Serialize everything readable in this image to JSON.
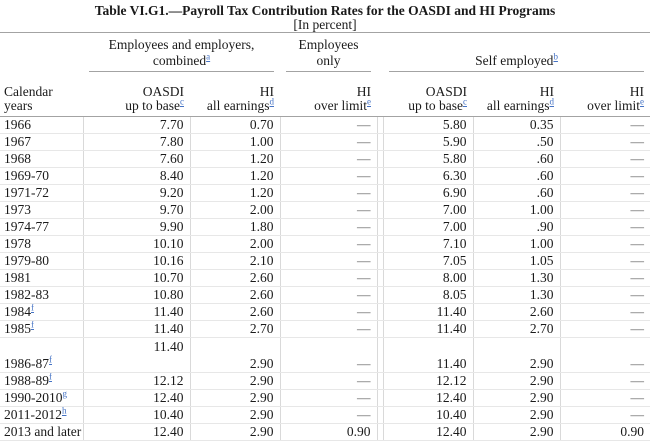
{
  "title": "Table VI.G1.—Payroll Tax Contribution Rates for the OASDI and HI Programs",
  "subtitle": "[In percent]",
  "colors": {
    "link_blue": "#4472c4",
    "text": "#1a1a1a",
    "vertical_grid": "#d9d9d9",
    "horizontal_grid": "#e7e7e7",
    "rule_gray": "#a3a3a3",
    "dash_gray": "#666666"
  },
  "table": {
    "groups": {
      "combined": {
        "line1": "Employees and employers,",
        "line2": "combined",
        "footnote": "a"
      },
      "employees_only": {
        "label": "Employees only",
        "footnote": ""
      },
      "self_employed": {
        "label": "Self employed",
        "footnote": "b"
      }
    },
    "column_headers": {
      "calendar_years": "Calendar years",
      "cols": [
        {
          "line1": "OASDI",
          "line2": "up to base",
          "footnote": "c"
        },
        {
          "line1": "HI",
          "line2": "all earnings",
          "footnote": "d"
        },
        {
          "line1": "HI",
          "line2": "over limit",
          "footnote": "e"
        },
        {
          "line1": "OASDI",
          "line2": "up to base",
          "footnote": "c"
        },
        {
          "line1": "HI",
          "line2": "all earnings",
          "footnote": "d"
        },
        {
          "line1": "HI",
          "line2": "over limit",
          "footnote": "e"
        }
      ]
    },
    "rows": [
      {
        "year": "1966",
        "footnote": "",
        "values": [
          "7.70",
          "0.70",
          "—",
          "5.80",
          "0.35",
          "—"
        ]
      },
      {
        "year": "1967",
        "footnote": "",
        "values": [
          "7.80",
          "1.00",
          "—",
          "5.90",
          ".50",
          "—"
        ]
      },
      {
        "year": "1968",
        "footnote": "",
        "values": [
          "7.60",
          "1.20",
          "—",
          "5.80",
          ".60",
          "—"
        ]
      },
      {
        "year": "1969-70",
        "footnote": "",
        "values": [
          "8.40",
          "1.20",
          "—",
          "6.30",
          ".60",
          "—"
        ]
      },
      {
        "year": "1971-72",
        "footnote": "",
        "values": [
          "9.20",
          "1.20",
          "—",
          "6.90",
          ".60",
          "—"
        ]
      },
      {
        "year": "1973",
        "footnote": "",
        "values": [
          "9.70",
          "2.00",
          "—",
          "7.00",
          "1.00",
          "—"
        ]
      },
      {
        "year": "1974-77",
        "footnote": "",
        "values": [
          "9.90",
          "1.80",
          "—",
          "7.00",
          ".90",
          "—"
        ]
      },
      {
        "year": "1978",
        "footnote": "",
        "values": [
          "10.10",
          "2.00",
          "—",
          "7.10",
          "1.00",
          "—"
        ]
      },
      {
        "year": "1979-80",
        "footnote": "",
        "values": [
          "10.16",
          "2.10",
          "—",
          "7.05",
          "1.05",
          "—"
        ]
      },
      {
        "year": "1981",
        "footnote": "",
        "values": [
          "10.70",
          "2.60",
          "—",
          "8.00",
          "1.30",
          "—"
        ]
      },
      {
        "year": "1982-83",
        "footnote": "",
        "values": [
          "10.80",
          "2.60",
          "—",
          "8.05",
          "1.30",
          "—"
        ]
      },
      {
        "year": "1984",
        "footnote": "f",
        "values": [
          "11.40",
          "2.60",
          "—",
          "11.40",
          "2.60",
          "—"
        ]
      },
      {
        "year": "1985",
        "footnote": "f",
        "values": [
          "11.40",
          "2.70",
          "—",
          "11.40",
          "2.70",
          "—"
        ]
      },
      {
        "year": "1986-87",
        "footnote": "f",
        "tall": true,
        "oasdi_top": "11.40",
        "values": [
          "",
          "2.90",
          "—",
          "11.40",
          "2.90",
          "—"
        ]
      },
      {
        "year": "1988-89",
        "footnote": "f",
        "values": [
          "12.12",
          "2.90",
          "—",
          "12.12",
          "2.90",
          "—"
        ]
      },
      {
        "year": "1990-2010",
        "footnote": "g",
        "values": [
          "12.40",
          "2.90",
          "—",
          "12.40",
          "2.90",
          "—"
        ]
      },
      {
        "year": "2011-2012",
        "footnote": "h",
        "values": [
          "10.40",
          "2.90",
          "—",
          "10.40",
          "2.90",
          "—"
        ]
      },
      {
        "year": "2013 and later",
        "footnote": "",
        "values": [
          "12.40",
          "2.90",
          "0.90",
          "12.40",
          "2.90",
          "0.90"
        ]
      }
    ]
  }
}
